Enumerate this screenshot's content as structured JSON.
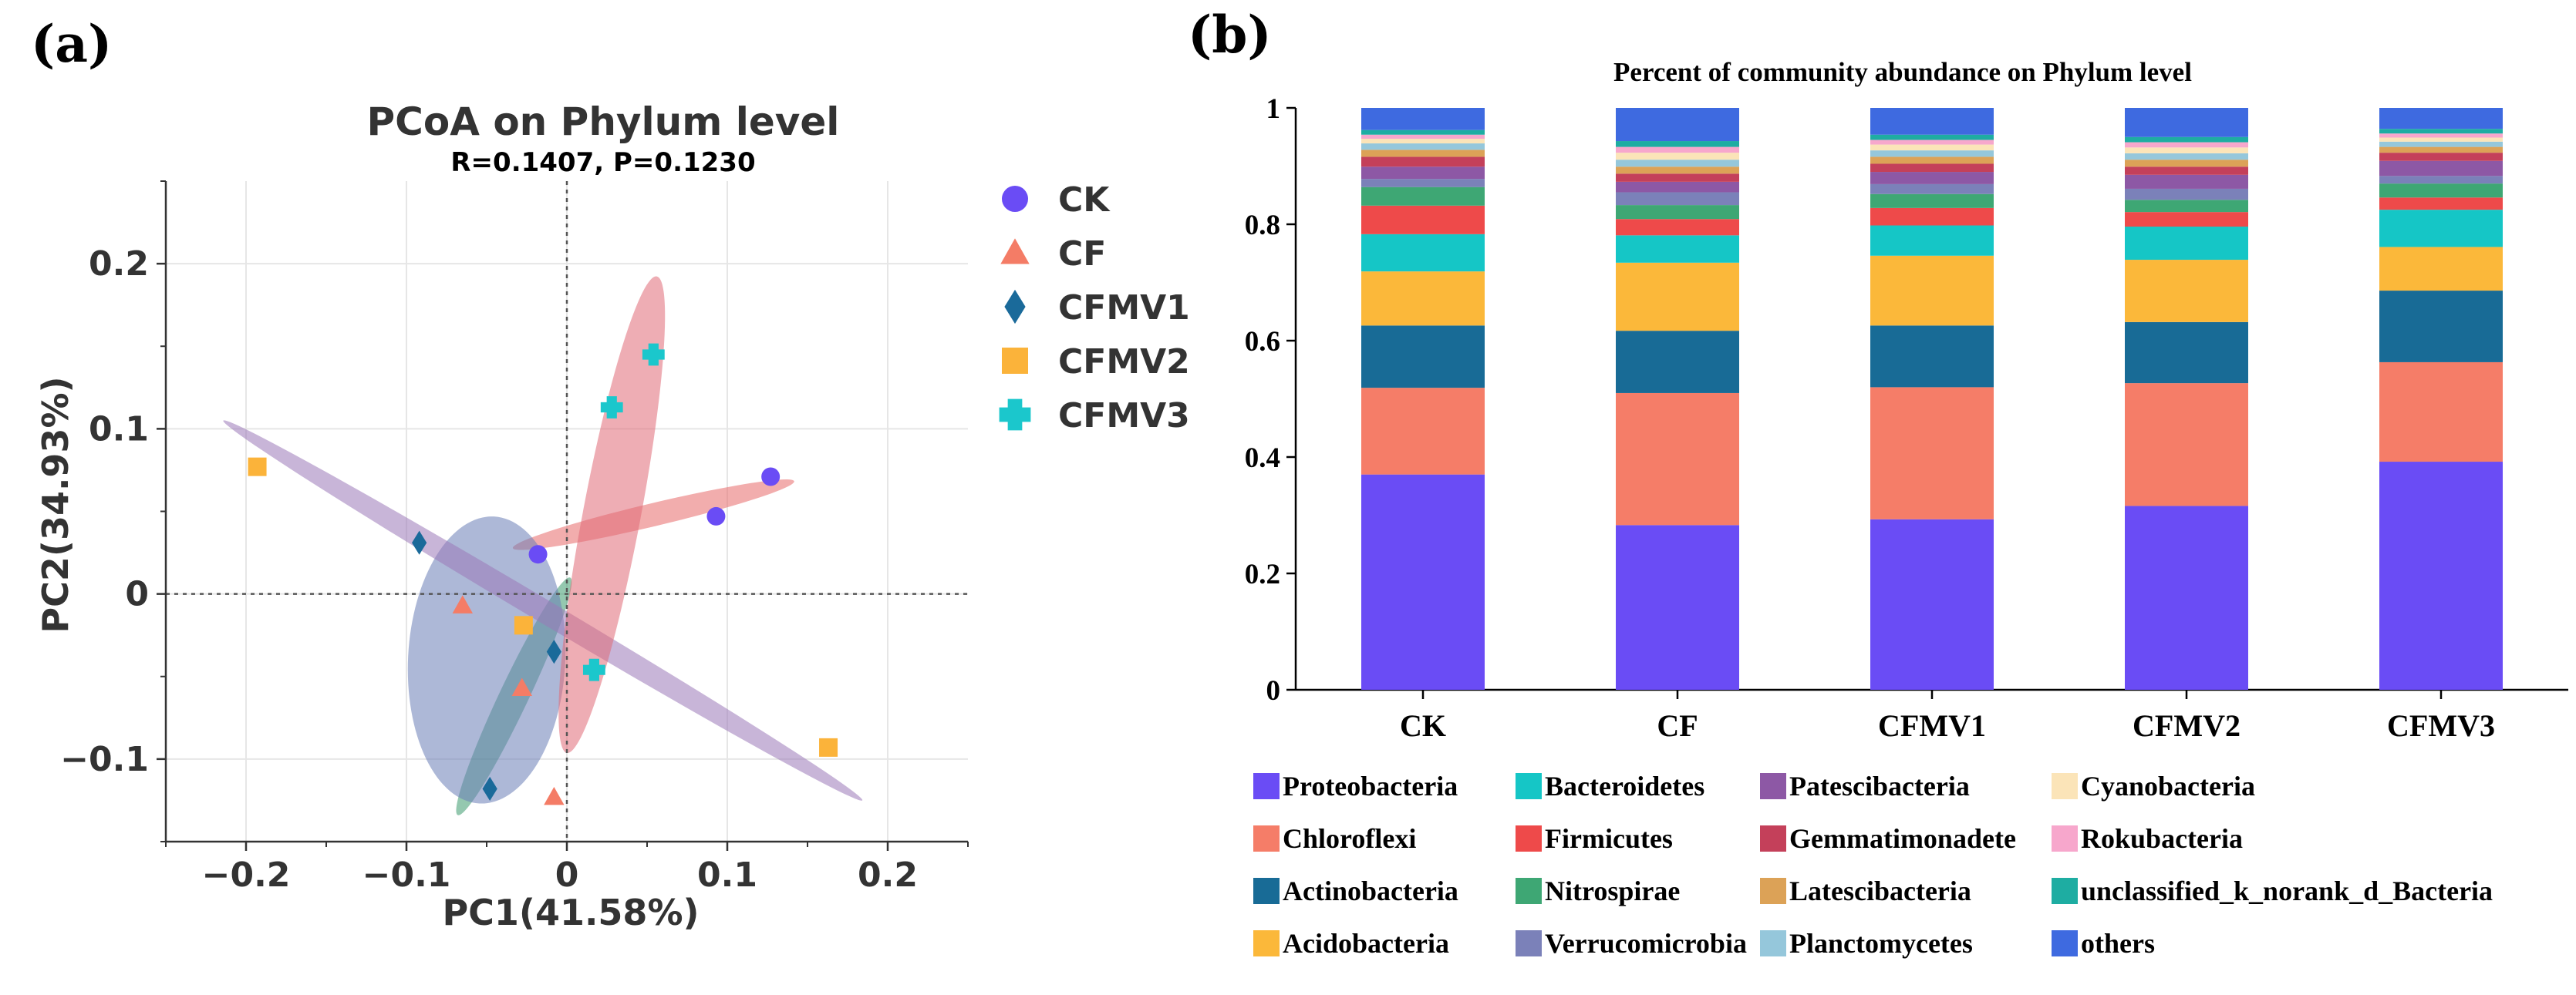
{
  "panel_labels": {
    "a": "(a)",
    "b": "(b)"
  },
  "chart_data": [
    {
      "type": "scatter",
      "title": "PCoA on Phylum level",
      "subtitle": "R=0.1407, P=0.1230",
      "xlabel": "PC1(41.58%)",
      "ylabel": "PC2(34.93%)",
      "xlim": [
        -0.25,
        0.25
      ],
      "ylim": [
        -0.15,
        0.25
      ],
      "xticks": [
        -0.2,
        -0.1,
        0,
        0.1,
        0.2
      ],
      "xtick_labels": [
        "−0.2",
        "−0.1",
        "0",
        "0.1",
        "0.2"
      ],
      "yticks": [
        -0.1,
        0,
        0.1,
        0.2
      ],
      "ytick_labels": [
        "−0.1",
        "0",
        "0.1",
        "0.2"
      ],
      "grid": true,
      "legend_position": "right",
      "series": [
        {
          "name": "CK",
          "marker": "circle",
          "color": "#6a4cf5",
          "ellipse_color": "#e86a6a",
          "points": [
            [
              -0.018,
              0.024
            ],
            [
              0.093,
              0.047
            ],
            [
              0.127,
              0.071
            ]
          ],
          "ellipse": {
            "center": [
              0.054,
              0.048
            ],
            "rx": 0.09,
            "ry": 0.007,
            "angle_deg": 13
          }
        },
        {
          "name": "CF",
          "marker": "triangle",
          "color": "#f47c66",
          "ellipse_color": "#3d9a6e",
          "points": [
            [
              -0.065,
              -0.007
            ],
            [
              -0.028,
              -0.057
            ],
            [
              -0.008,
              -0.123
            ]
          ],
          "ellipse": {
            "center": [
              -0.033,
              -0.062
            ],
            "rx": 0.08,
            "ry": 0.009,
            "angle_deg": 64
          }
        },
        {
          "name": "CFMV1",
          "marker": "diamond",
          "color": "#1a6a9a",
          "ellipse_color": "#6a7eb7",
          "points": [
            [
              -0.092,
              0.031
            ],
            [
              -0.008,
              -0.035
            ],
            [
              -0.048,
              -0.118
            ]
          ],
          "ellipse": {
            "center": [
              -0.05,
              -0.04
            ],
            "rx": 0.087,
            "ry": 0.049,
            "angle_deg": 87
          }
        },
        {
          "name": "CFMV2",
          "marker": "square",
          "color": "#fbb33a",
          "ellipse_color": "#9a78b8",
          "points": [
            [
              -0.193,
              0.077
            ],
            [
              -0.027,
              -0.019
            ],
            [
              0.163,
              -0.093
            ]
          ],
          "ellipse": {
            "center": [
              -0.015,
              -0.01
            ],
            "rx": 0.23,
            "ry": 0.007,
            "angle_deg": -30
          }
        },
        {
          "name": "CFMV3",
          "marker": "plus",
          "color": "#1bc7cc",
          "ellipse_color": "#e06a76",
          "points": [
            [
              0.028,
              0.113
            ],
            [
              0.054,
              0.145
            ],
            [
              0.017,
              -0.046
            ]
          ],
          "ellipse": {
            "center": [
              0.028,
              0.048
            ],
            "rx": 0.147,
            "ry": 0.018,
            "angle_deg": 79
          }
        }
      ]
    },
    {
      "type": "bar",
      "stacked": true,
      "title": "Percent of community abundance on Phylum level",
      "ylim": [
        0,
        1
      ],
      "yticks": [
        0,
        0.2,
        0.4,
        0.6,
        0.8,
        1
      ],
      "ytick_labels": [
        "0",
        "0.2",
        "0.4",
        "0.6",
        "0.8",
        "1"
      ],
      "categories": [
        "CK",
        "CF",
        "CFMV1",
        "CFMV2",
        "CFMV3"
      ],
      "legend_position": "bottom",
      "series": [
        {
          "name": "Proteobacteria",
          "color": "#6a4cf5",
          "values": [
            0.37,
            0.283,
            0.293,
            0.316,
            0.392
          ]
        },
        {
          "name": "Chloroflexi",
          "color": "#f57d68",
          "values": [
            0.149,
            0.227,
            0.227,
            0.211,
            0.171
          ]
        },
        {
          "name": "Actinobacteria",
          "color": "#186b96",
          "values": [
            0.107,
            0.107,
            0.106,
            0.105,
            0.123
          ]
        },
        {
          "name": "Acidobacteria",
          "color": "#fbb83a",
          "values": [
            0.093,
            0.117,
            0.12,
            0.107,
            0.075
          ]
        },
        {
          "name": "Bacteroidetes",
          "color": "#15c6c6",
          "values": [
            0.064,
            0.047,
            0.052,
            0.057,
            0.064
          ]
        },
        {
          "name": "Firmicutes",
          "color": "#ee4a4a",
          "values": [
            0.049,
            0.028,
            0.03,
            0.025,
            0.021
          ]
        },
        {
          "name": "Nitrospirae",
          "color": "#3ea774",
          "values": [
            0.032,
            0.024,
            0.024,
            0.021,
            0.024
          ]
        },
        {
          "name": "Verrucomicrobia",
          "color": "#7b81b9",
          "values": [
            0.014,
            0.022,
            0.017,
            0.019,
            0.013
          ]
        },
        {
          "name": "Patescibacteria",
          "color": "#8d58a5",
          "values": [
            0.021,
            0.018,
            0.021,
            0.024,
            0.026
          ]
        },
        {
          "name": "Gemmatimonadete",
          "color": "#c4405a",
          "values": [
            0.017,
            0.014,
            0.014,
            0.014,
            0.014
          ]
        },
        {
          "name": "Latescibacteria",
          "color": "#dca257",
          "values": [
            0.012,
            0.012,
            0.012,
            0.012,
            0.01
          ]
        },
        {
          "name": "Planctomycetes",
          "color": "#95c7db",
          "values": [
            0.011,
            0.012,
            0.011,
            0.011,
            0.009
          ]
        },
        {
          "name": "Cyanobacteria",
          "color": "#fbe4b8",
          "values": [
            0.008,
            0.012,
            0.01,
            0.01,
            0.007
          ]
        },
        {
          "name": "Rokubacteria",
          "color": "#f7a7cc",
          "values": [
            0.007,
            0.01,
            0.008,
            0.009,
            0.007
          ]
        },
        {
          "name": "unclassified_k_norank_d_Bacteria",
          "color": "#1eada2",
          "values": [
            0.008,
            0.01,
            0.009,
            0.009,
            0.008
          ]
        },
        {
          "name": "others",
          "color": "#3e6ae0",
          "values": [
            0.038,
            0.057,
            0.046,
            0.05,
            0.032
          ]
        }
      ]
    }
  ]
}
